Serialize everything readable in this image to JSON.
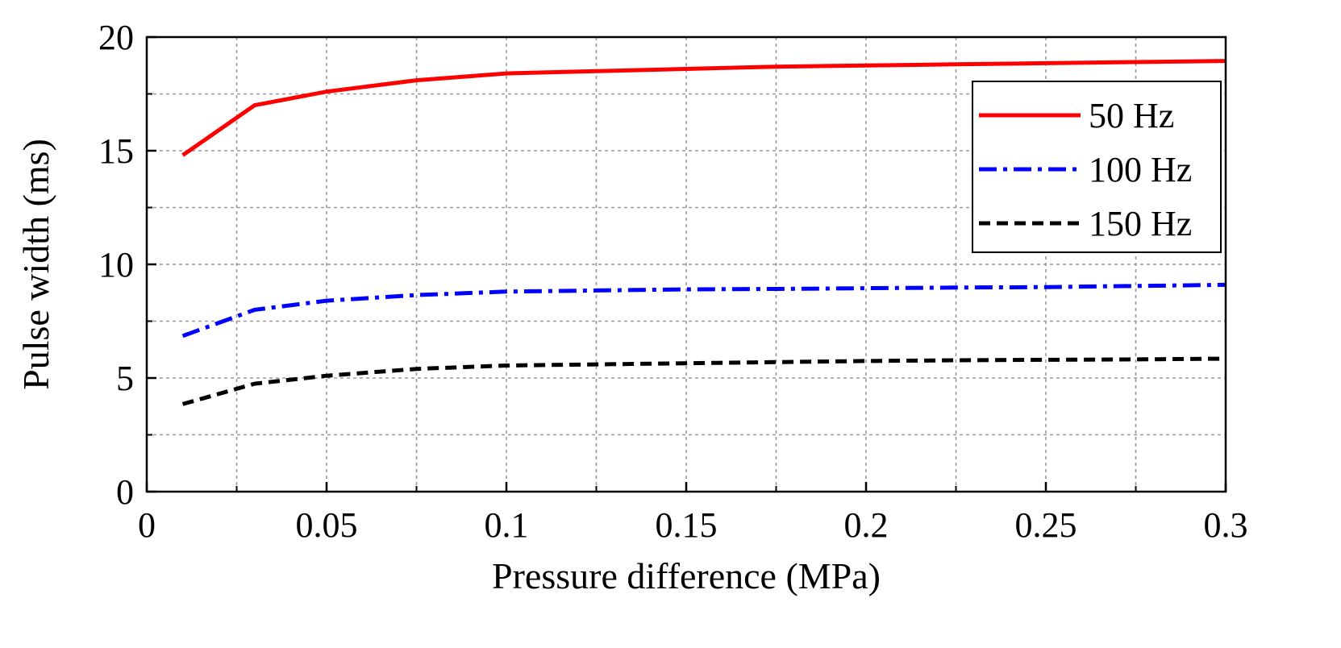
{
  "chart_data": {
    "type": "line",
    "xlabel": "Pressure difference (MPa)",
    "ylabel": "Pulse width (ms)",
    "xlim": [
      0,
      0.3
    ],
    "ylim": [
      0,
      20
    ],
    "xticks": [
      0,
      0.05,
      0.1,
      0.15,
      0.2,
      0.25,
      0.3
    ],
    "xtick_labels": [
      "0",
      "0.05",
      "0.1",
      "0.15",
      "0.2",
      "0.25",
      "0.3"
    ],
    "yticks": [
      0,
      5,
      10,
      15,
      20
    ],
    "ytick_labels": [
      "0",
      "5",
      "10",
      "15",
      "20"
    ],
    "x_minor_grid_step": 0.025,
    "y_minor_grid_step": 2.5,
    "grid": true,
    "legend_position": "top-right",
    "series": [
      {
        "name": "50 Hz",
        "color": "#ff0000",
        "style": "solid",
        "x": [
          0.01,
          0.03,
          0.05,
          0.075,
          0.1,
          0.125,
          0.15,
          0.175,
          0.2,
          0.225,
          0.25,
          0.275,
          0.3
        ],
        "y": [
          14.8,
          17.0,
          17.6,
          18.1,
          18.4,
          18.5,
          18.6,
          18.7,
          18.75,
          18.8,
          18.85,
          18.9,
          18.95
        ]
      },
      {
        "name": "100 Hz",
        "color": "#0000ff",
        "style": "dashdot",
        "x": [
          0.01,
          0.03,
          0.05,
          0.075,
          0.1,
          0.125,
          0.15,
          0.175,
          0.2,
          0.225,
          0.25,
          0.275,
          0.3
        ],
        "y": [
          6.85,
          8.0,
          8.4,
          8.65,
          8.8,
          8.85,
          8.9,
          8.92,
          8.95,
          8.98,
          9.0,
          9.05,
          9.1
        ]
      },
      {
        "name": "150 Hz",
        "color": "#000000",
        "style": "dashed",
        "x": [
          0.01,
          0.03,
          0.05,
          0.075,
          0.1,
          0.125,
          0.15,
          0.175,
          0.2,
          0.225,
          0.25,
          0.275,
          0.3
        ],
        "y": [
          3.85,
          4.75,
          5.1,
          5.4,
          5.55,
          5.6,
          5.65,
          5.7,
          5.75,
          5.78,
          5.8,
          5.82,
          5.85
        ]
      }
    ]
  }
}
